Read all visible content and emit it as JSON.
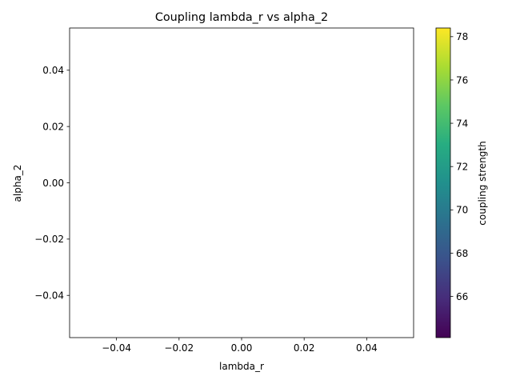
{
  "chart_data": {
    "type": "scatter",
    "title": "Coupling lambda_r vs alpha_2",
    "xlabel": "lambda_r",
    "ylabel": "alpha_2",
    "xlim": [
      -0.055,
      0.055
    ],
    "ylim": [
      -0.055,
      0.055
    ],
    "x_ticks": [
      -0.04,
      -0.02,
      0.0,
      0.02,
      0.04
    ],
    "x_tick_labels": [
      "−0.04",
      "−0.02",
      "0.00",
      "0.02",
      "0.04"
    ],
    "y_ticks": [
      -0.04,
      -0.02,
      0.0,
      0.02,
      0.04
    ],
    "y_tick_labels": [
      "−0.04",
      "−0.02",
      "0.00",
      "0.02",
      "0.04"
    ],
    "points": [],
    "grid": false,
    "colorbar": {
      "label": "coupling strength",
      "colormap": "viridis",
      "range": [
        64.1,
        78.4
      ],
      "ticks": [
        66,
        68,
        70,
        72,
        74,
        76,
        78
      ],
      "tick_labels": [
        "66",
        "68",
        "70",
        "72",
        "74",
        "76",
        "78"
      ],
      "colors": [
        "#440154",
        "#472c7a",
        "#3b518b",
        "#2c718e",
        "#21908d",
        "#27ad81",
        "#5cc863",
        "#aadc32",
        "#fde725"
      ]
    }
  }
}
